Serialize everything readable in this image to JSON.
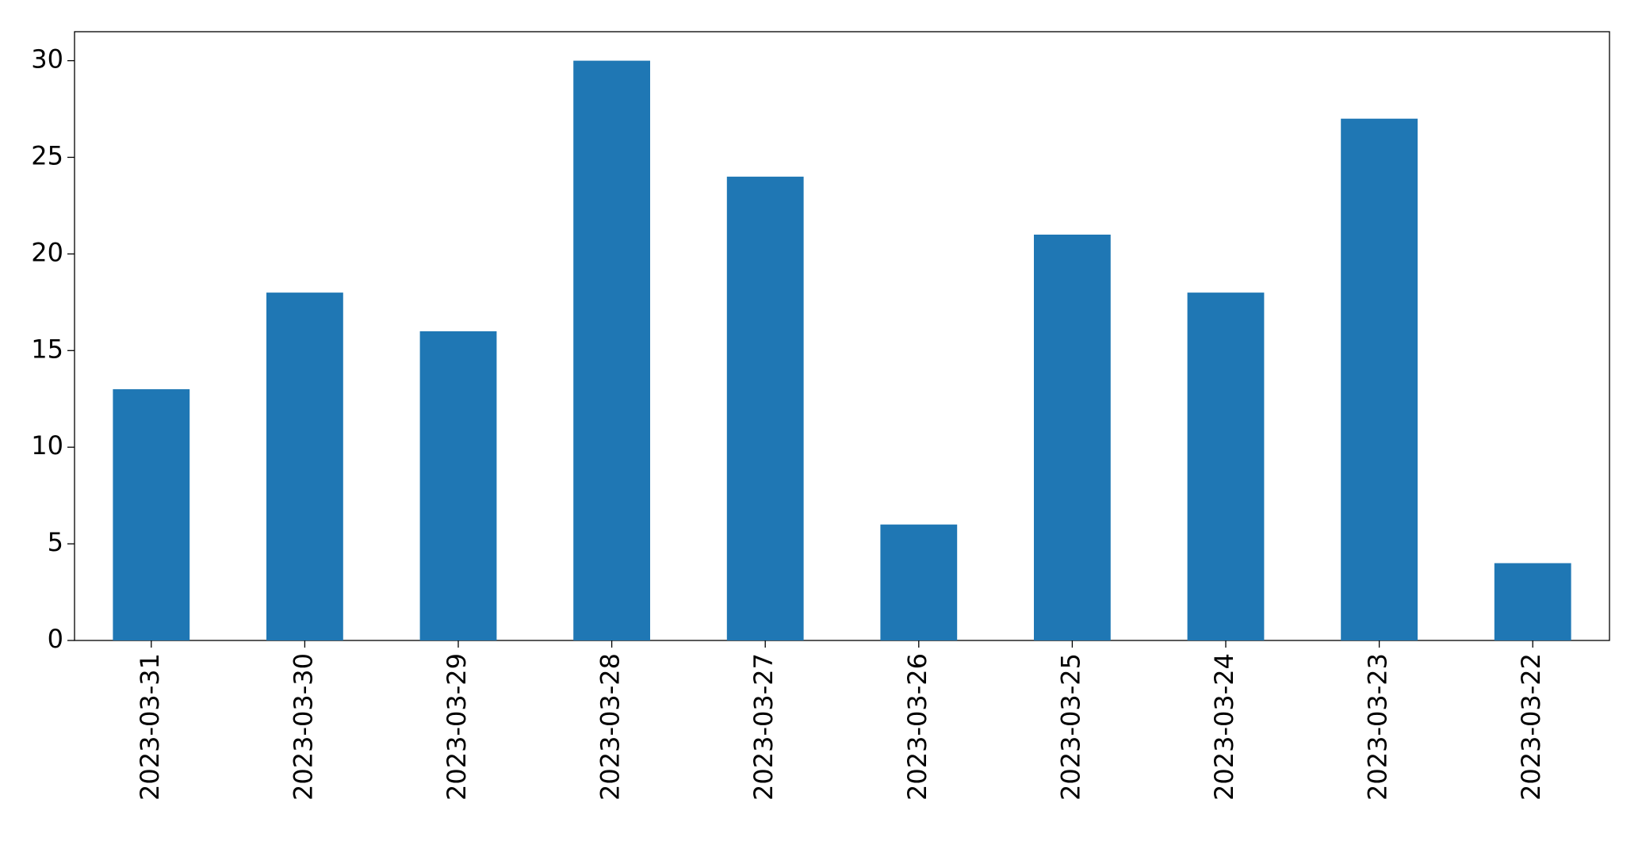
{
  "chart_data": {
    "type": "bar",
    "categories": [
      "2023-03-31",
      "2023-03-30",
      "2023-03-29",
      "2023-03-28",
      "2023-03-27",
      "2023-03-26",
      "2023-03-25",
      "2023-03-24",
      "2023-03-23",
      "2023-03-22"
    ],
    "values": [
      13,
      18,
      16,
      30,
      24,
      6,
      21,
      18,
      27,
      4
    ],
    "color": "#1f77b4",
    "ylim": [
      0,
      31.5
    ],
    "yticks": [
      0,
      5,
      10,
      15,
      20,
      25,
      30
    ],
    "grid": false
  }
}
